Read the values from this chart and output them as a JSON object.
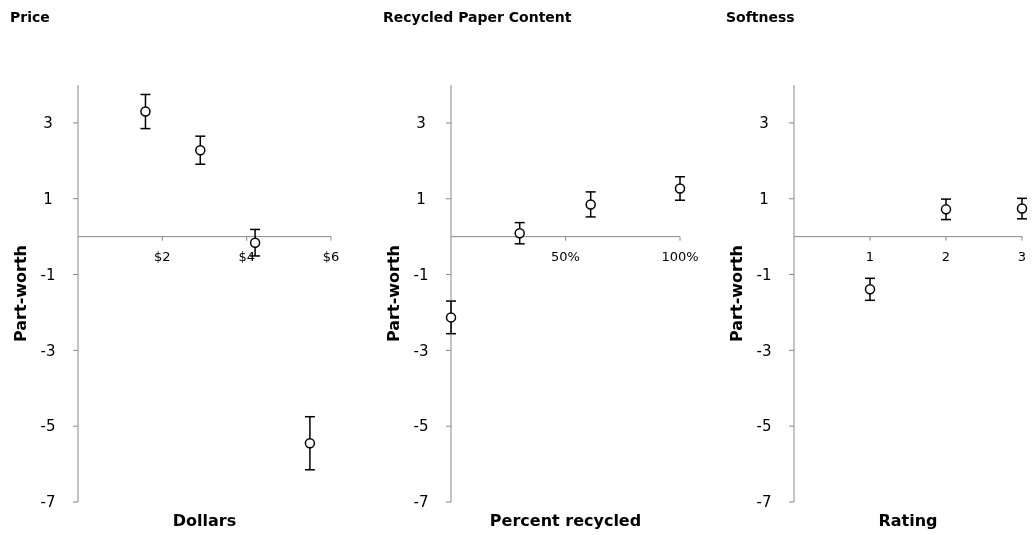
{
  "chart_data": [
    {
      "type": "scatter",
      "title": "Price",
      "xlabel": "Dollars",
      "ylabel": "Part-worth",
      "marker": "circle",
      "x": [
        1.6,
        2.9,
        4.2,
        5.5
      ],
      "series": [
        {
          "color": "#000000",
          "values": [
            3.3,
            2.28,
            -0.16,
            -5.45
          ],
          "errors": [
            0.45,
            0.37,
            0.35,
            0.7
          ]
        }
      ],
      "xlim": [
        0,
        6
      ],
      "xticks": [
        {
          "value": 2,
          "label": "$2"
        },
        {
          "value": 4,
          "label": "$4"
        },
        {
          "value": 6,
          "label": "$6"
        }
      ],
      "ylim": [
        -7,
        4
      ],
      "yticks": [
        -7,
        -5,
        -3,
        -1,
        1,
        3
      ]
    },
    {
      "type": "scatter",
      "title": "Recycled Paper Content",
      "xlabel": "Percent recycled",
      "ylabel": "Part-worth",
      "marker": "circle",
      "x": [
        0,
        30,
        61,
        100
      ],
      "series": [
        {
          "color": "#000000",
          "values": [
            -2.13,
            0.09,
            0.85,
            1.27
          ],
          "errors": [
            0.43,
            0.28,
            0.33,
            0.31
          ]
        }
      ],
      "xlim": [
        0,
        100
      ],
      "xticks": [
        {
          "value": 50,
          "label": "50%"
        },
        {
          "value": 100,
          "label": "100%"
        }
      ],
      "ylim": [
        -7,
        4
      ],
      "yticks": [
        -7,
        -5,
        -3,
        -1,
        1,
        3
      ]
    },
    {
      "type": "scatter",
      "title": "Softness",
      "xlabel": "Rating",
      "ylabel": "Part-worth",
      "marker": "circle",
      "x": [
        1,
        2,
        3
      ],
      "series": [
        {
          "color": "#000000",
          "values": [
            -1.39,
            0.72,
            0.74
          ],
          "errors": [
            0.29,
            0.27,
            0.27
          ]
        }
      ],
      "xlim": [
        0,
        3
      ],
      "xticks": [
        1,
        2,
        3
      ],
      "ylim": [
        -7,
        4
      ],
      "yticks": [
        -7,
        -5,
        -3,
        -1,
        1,
        3
      ]
    }
  ]
}
